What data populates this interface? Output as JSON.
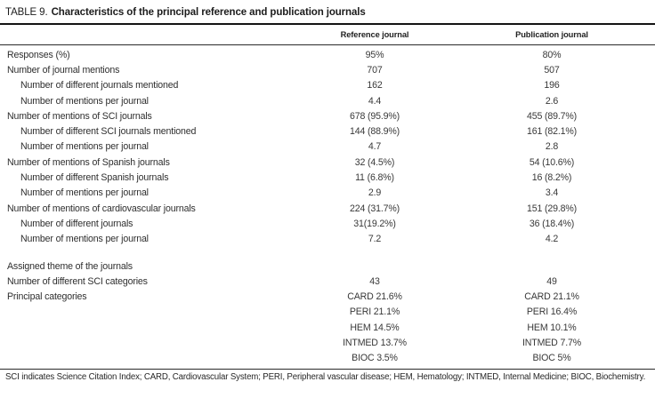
{
  "title": {
    "prefix": "TABLE 9.",
    "main": "Characteristics of the principal reference and publication journals"
  },
  "columns": {
    "reference": "Reference journal",
    "publication": "Publication journal"
  },
  "table": {
    "rows": [
      {
        "label": "Responses (%)",
        "indent": 0,
        "ref": "95%",
        "pub": "80%"
      },
      {
        "label": "Number of journal mentions",
        "indent": 0,
        "ref": "707",
        "pub": "507"
      },
      {
        "label": "Number of different journals mentioned",
        "indent": 1,
        "ref": "162",
        "pub": "196"
      },
      {
        "label": "Number of mentions per journal",
        "indent": 1,
        "ref": "4.4",
        "pub": "2.6"
      },
      {
        "label": "Number of mentions of SCI journals",
        "indent": 0,
        "ref": "678 (95.9%)",
        "pub": "455 (89.7%)"
      },
      {
        "label": "Number of different SCI journals mentioned",
        "indent": 1,
        "ref": "144 (88.9%)",
        "pub": "161 (82.1%)"
      },
      {
        "label": "Number of mentions per journal",
        "indent": 1,
        "ref": "4.7",
        "pub": "2.8"
      },
      {
        "label": "Number of mentions of Spanish journals",
        "indent": 0,
        "ref": "32 (4.5%)",
        "pub": "54 (10.6%)"
      },
      {
        "label": "Number of different Spanish journals",
        "indent": 1,
        "ref": "11 (6.8%)",
        "pub": "16 (8.2%)"
      },
      {
        "label": "Number of mentions per journal",
        "indent": 1,
        "ref": "2.9",
        "pub": "3.4"
      },
      {
        "label": "Number of mentions of cardiovascular journals",
        "indent": 0,
        "ref": "224 (31.7%)",
        "pub": "151 (29.8%)"
      },
      {
        "label": "Number of different journals",
        "indent": 1,
        "ref": "31(19.2%)",
        "pub": "36 (18.4%)"
      },
      {
        "label": "Number of mentions per journal",
        "indent": 1,
        "ref": "7.2",
        "pub": "4.2"
      },
      {
        "spacer": true
      },
      {
        "label": "Assigned theme of the journals",
        "indent": 0,
        "ref": "",
        "pub": ""
      },
      {
        "label": "Number of different SCI categories",
        "indent": 0,
        "ref": "43",
        "pub": "49"
      },
      {
        "label": "Principal categories",
        "indent": 0,
        "ref": "CARD 21.6%",
        "pub": "CARD 21.1%"
      },
      {
        "label": "",
        "indent": 0,
        "ref": "PERI 21.1%",
        "pub": "PERI 16.4%"
      },
      {
        "label": "",
        "indent": 0,
        "ref": "HEM 14.5%",
        "pub": "HEM 10.1%"
      },
      {
        "label": "",
        "indent": 0,
        "ref": "INTMED 13.7%",
        "pub": "INTMED 7.7%"
      },
      {
        "label": "",
        "indent": 0,
        "ref": "BIOC 3.5%",
        "pub": "BIOC 5%"
      }
    ]
  },
  "footnote": "SCI indicates Science Citation Index; CARD, Cardiovascular System; PERI, Peripheral vascular disease; HEM, Hematology; INTMED, Internal Medicine; BIOC, Biochemistry."
}
